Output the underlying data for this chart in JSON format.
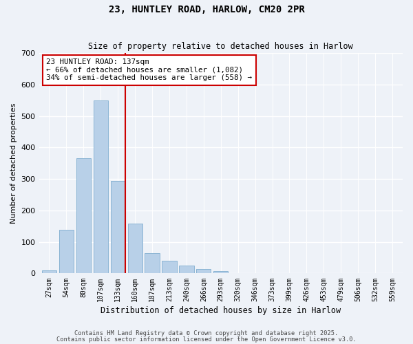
{
  "title": "23, HUNTLEY ROAD, HARLOW, CM20 2PR",
  "subtitle": "Size of property relative to detached houses in Harlow",
  "xlabel": "Distribution of detached houses by size in Harlow",
  "ylabel": "Number of detached properties",
  "categories": [
    "27sqm",
    "54sqm",
    "80sqm",
    "107sqm",
    "133sqm",
    "160sqm",
    "187sqm",
    "213sqm",
    "240sqm",
    "266sqm",
    "293sqm",
    "320sqm",
    "346sqm",
    "373sqm",
    "399sqm",
    "426sqm",
    "453sqm",
    "479sqm",
    "506sqm",
    "532sqm",
    "559sqm"
  ],
  "values": [
    9,
    138,
    365,
    550,
    293,
    159,
    65,
    40,
    24,
    13,
    8,
    0,
    1,
    0,
    0,
    0,
    0,
    0,
    0,
    0,
    0
  ],
  "bar_color": "#b8d0e8",
  "bar_edgecolor": "#8ab4d4",
  "annotation_line1": "23 HUNTLEY ROAD: 137sqm",
  "annotation_line2": "← 66% of detached houses are smaller (1,082)",
  "annotation_line3": "34% of semi-detached houses are larger (558) →",
  "annotation_box_facecolor": "#ffffff",
  "annotation_box_edgecolor": "#cc0000",
  "redline_color": "#cc0000",
  "redline_bar_index": 4,
  "ylim": [
    0,
    700
  ],
  "yticks": [
    0,
    100,
    200,
    300,
    400,
    500,
    600,
    700
  ],
  "bg_color": "#eef2f8",
  "grid_color": "#ffffff",
  "footer1": "Contains HM Land Registry data © Crown copyright and database right 2025.",
  "footer2": "Contains public sector information licensed under the Open Government Licence v3.0."
}
